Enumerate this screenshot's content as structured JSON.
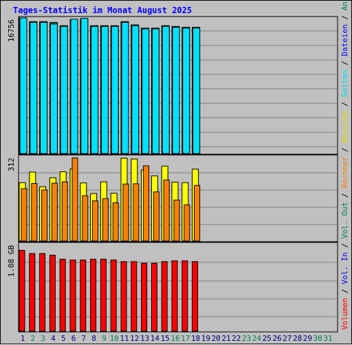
{
  "title": "Tages-Statistik im Monat August 2025",
  "right_label": {
    "separator": " / ",
    "items": [
      {
        "text": "Volumen",
        "color": "#ff0000"
      },
      {
        "text": "Vol. In",
        "color": "#0000ff"
      },
      {
        "text": "Vol. Out",
        "color": "#00805c"
      },
      {
        "text": "Rechner",
        "color": "#ff8000"
      },
      {
        "text": "Besuche",
        "color": "#e0e000"
      },
      {
        "text": "Seiten",
        "color": "#00e0ff"
      },
      {
        "text": "Dateien",
        "color": "#0000ff"
      },
      {
        "text": "Anfragen",
        "color": "#00805c"
      }
    ]
  },
  "chart_data": {
    "type": "bar",
    "title": "Tages-Statistik im Monat August 2025",
    "categories": [
      "1",
      "2",
      "3",
      "4",
      "5",
      "6",
      "7",
      "8",
      "9",
      "10",
      "11",
      "12",
      "13",
      "14",
      "15",
      "16",
      "17",
      "18",
      "19",
      "20",
      "21",
      "22",
      "23",
      "24",
      "25",
      "26",
      "27",
      "28",
      "29",
      "30",
      "31"
    ],
    "weekend_days": [
      "2",
      "3",
      "9",
      "10",
      "16",
      "17",
      "23",
      "24",
      "30",
      "31"
    ],
    "colors": {
      "weekday": "#000080",
      "weekend": "#00805c"
    },
    "panels": [
      {
        "name": "requests",
        "max_label": "16756",
        "max": 16756,
        "series": [
          {
            "name": "Anfragen",
            "color": "#00805c",
            "values": [
              16756,
              16300,
              16300,
              16200,
              15800,
              16500,
              16600,
              15800,
              15800,
              15800,
              16300,
              15900,
              15500,
              15500,
              15800,
              15700,
              15600,
              15600
            ]
          },
          {
            "name": "Dateien",
            "color": "#0000ff",
            "values": [
              16500,
              16100,
              16100,
              16000,
              15600,
              16300,
              16400,
              15600,
              15600,
              15600,
              16100,
              15700,
              15300,
              15300,
              15600,
              15500,
              15400,
              15400
            ]
          },
          {
            "name": "Seiten",
            "color": "#00e0ff",
            "values": [
              16756,
              16200,
              16200,
              16000,
              15700,
              16600,
              16700,
              15700,
              15700,
              15700,
              16200,
              15800,
              15400,
              15400,
              15700,
              15600,
              15500,
              15500
            ]
          }
        ]
      },
      {
        "name": "visits",
        "max_label": "312",
        "max": 312,
        "series": [
          {
            "name": "Besuche",
            "color": "#ffff00",
            "values": [
              215,
              254,
              200,
              233,
              255,
              266,
              214,
              175,
              218,
              176,
              305,
              302,
              262,
              240,
              276,
              217,
              215,
              265
            ]
          },
          {
            "name": "Rechner",
            "color": "#ff8000",
            "values": [
              193,
              212,
              188,
              213,
              218,
              306,
              167,
              148,
              156,
              141,
              210,
              211,
              277,
              181,
              225,
              151,
              133,
              205
            ]
          }
        ]
      },
      {
        "name": "volume",
        "max_label": "1.08 GB",
        "max": 1.08,
        "series": [
          {
            "name": "Volumen",
            "color": "#ff0000",
            "values": [
              1.0,
              0.96,
              0.96,
              0.94,
              0.89,
              0.88,
              0.88,
              0.89,
              0.89,
              0.88,
              0.86,
              0.86,
              0.84,
              0.84,
              0.86,
              0.87,
              0.87,
              0.86
            ]
          }
        ]
      }
    ]
  }
}
